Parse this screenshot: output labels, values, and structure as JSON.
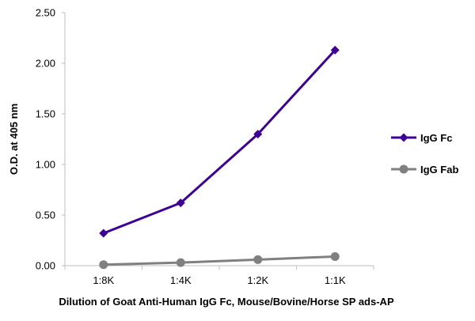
{
  "chart_data": {
    "type": "line",
    "categories": [
      "1:8K",
      "1:4K",
      "1:2K",
      "1:1K"
    ],
    "series": [
      {
        "name": "IgG Fc",
        "values": [
          0.32,
          0.62,
          1.3,
          2.13
        ],
        "color": "#3d0099",
        "marker": "diamond"
      },
      {
        "name": "IgG Fab",
        "values": [
          0.01,
          0.03,
          0.06,
          0.09
        ],
        "color": "#808080",
        "marker": "circle"
      }
    ],
    "xlabel": "Dilution of Goat Anti-Human IgG Fc, Mouse/Bovine/Horse SP ads-AP",
    "ylabel": "O.D. at 405 nm",
    "ylim": [
      0,
      2.5
    ],
    "yticks": [
      "0.00",
      "0.50",
      "1.00",
      "1.50",
      "2.00",
      "2.50"
    ],
    "grid": false,
    "legend": "right"
  }
}
